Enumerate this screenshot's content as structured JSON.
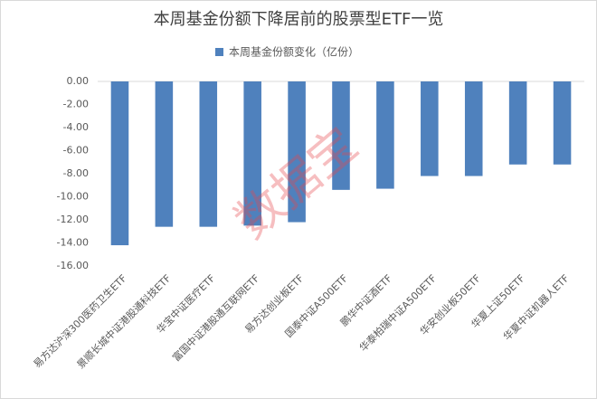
{
  "chart_data": {
    "type": "bar",
    "title": "本周基金份额下降居前的股票型ETF一览",
    "legend": "本周基金份额变化（亿份）",
    "watermark": "数据宝",
    "categories": [
      "易方达沪深300医药卫生ETF",
      "景顺长城中证港股通科技ETF",
      "华宝中证医疗ETF",
      "富国中证港股通互联网ETF",
      "易方达创业板ETF",
      "国泰中证A500ETF",
      "鹏华中证酒ETF",
      "华泰柏瑞中证A500ETF",
      "华安创业板50ETF",
      "华夏上证50ETF",
      "华夏中证机器人ETF"
    ],
    "values": [
      -14.2,
      -12.6,
      -12.6,
      -12.5,
      -12.2,
      -9.4,
      -9.3,
      -8.2,
      -8.2,
      -7.2,
      -7.2
    ],
    "color": "#4f81bd",
    "ylim": [
      -16,
      0
    ],
    "yticks": [
      {
        "value": 0,
        "label": "0.00"
      },
      {
        "value": -2,
        "label": "-2.00"
      },
      {
        "value": -4,
        "label": "-4.00"
      },
      {
        "value": -6,
        "label": "-6.00"
      },
      {
        "value": -8,
        "label": "-8.00"
      },
      {
        "value": -10,
        "label": "-10.00"
      },
      {
        "value": -12,
        "label": "-12.00"
      },
      {
        "value": -14,
        "label": "-14.00"
      },
      {
        "value": -16,
        "label": "-16.00"
      }
    ],
    "grid": false
  }
}
